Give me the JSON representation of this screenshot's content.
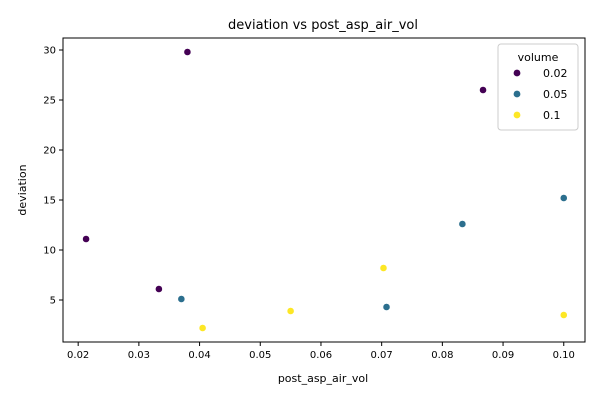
{
  "chart_data": {
    "type": "scatter",
    "title": "deviation vs post_asp_air_vol",
    "xlabel": "post_asp_air_vol",
    "ylabel": "deviation",
    "xlim": [
      0.0175,
      0.1035
    ],
    "ylim": [
      0.8,
      31.2
    ],
    "xticks": [
      0.02,
      0.03,
      0.04,
      0.05,
      0.06,
      0.07,
      0.08,
      0.09,
      0.1
    ],
    "xtick_labels": [
      "0.02",
      "0.03",
      "0.04",
      "0.05",
      "0.06",
      "0.07",
      "0.08",
      "0.09",
      "0.10"
    ],
    "yticks": [
      5,
      10,
      15,
      20,
      25,
      30
    ],
    "ytick_labels": [
      "5",
      "10",
      "15",
      "20",
      "25",
      "30"
    ],
    "grid": false,
    "legend": {
      "title": "volume",
      "placement": "top-right"
    },
    "series": [
      {
        "name": "0.02",
        "color": "#440154",
        "points": [
          {
            "x": 0.0213,
            "y": 11.1
          },
          {
            "x": 0.0333,
            "y": 6.1
          },
          {
            "x": 0.038,
            "y": 29.8
          },
          {
            "x": 0.0867,
            "y": 26.0
          }
        ]
      },
      {
        "name": "0.05",
        "color": "#2c6f8e",
        "points": [
          {
            "x": 0.037,
            "y": 5.1
          },
          {
            "x": 0.0708,
            "y": 4.3
          },
          {
            "x": 0.0833,
            "y": 12.6
          },
          {
            "x": 0.1,
            "y": 15.2
          }
        ]
      },
      {
        "name": "0.1",
        "color": "#fde725",
        "points": [
          {
            "x": 0.0405,
            "y": 2.2
          },
          {
            "x": 0.055,
            "y": 3.9
          },
          {
            "x": 0.0703,
            "y": 8.2
          },
          {
            "x": 0.1,
            "y": 3.5
          }
        ]
      }
    ]
  }
}
